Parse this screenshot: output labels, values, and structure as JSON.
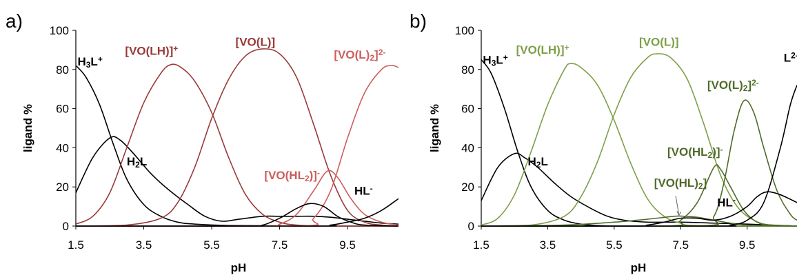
{
  "chart_data": [
    {
      "type": "line",
      "panel_letter": "a)",
      "xlabel": "pH",
      "ylabel": "ligand %",
      "xlim": [
        1.5,
        11.0
      ],
      "ylim": [
        0,
        100
      ],
      "x_ticks": [
        "1.5",
        "3.5",
        "5.5",
        "7.5",
        "9.5"
      ],
      "y_ticks": [
        "0",
        "20",
        "40",
        "60",
        "80",
        "100"
      ],
      "grid": false,
      "series": [
        {
          "name": "H3L+",
          "color": "#000000",
          "points": [
            [
              1.5,
              82
            ],
            [
              1.8,
              76
            ],
            [
              2.2,
              62
            ],
            [
              2.6,
              42
            ],
            [
              3.0,
              24
            ],
            [
              3.5,
              11
            ],
            [
              4.0,
              5
            ],
            [
              4.5,
              2
            ],
            [
              5.0,
              1
            ],
            [
              6.0,
              0.3
            ],
            [
              8.0,
              0
            ],
            [
              11.0,
              0
            ]
          ]
        },
        {
          "name": "H2L",
          "color": "#000000",
          "points": [
            [
              1.5,
              17
            ],
            [
              2.0,
              35
            ],
            [
              2.5,
              45
            ],
            [
              2.8,
              44
            ],
            [
              3.2,
              37
            ],
            [
              3.7,
              27
            ],
            [
              4.2,
              19
            ],
            [
              4.8,
              11
            ],
            [
              5.3,
              5
            ],
            [
              5.8,
              2.5
            ],
            [
              6.3,
              3.5
            ],
            [
              7.0,
              5
            ],
            [
              7.5,
              5
            ],
            [
              8.0,
              5
            ],
            [
              8.5,
              5
            ],
            [
              9.0,
              4.5
            ],
            [
              9.5,
              3.5
            ],
            [
              10.0,
              2.5
            ],
            [
              10.5,
              1.5
            ],
            [
              11.0,
              1
            ]
          ]
        },
        {
          "name": "[VO(LH)]+",
          "color": "#9b3a3a",
          "points": [
            [
              1.5,
              1
            ],
            [
              2.0,
              5
            ],
            [
              2.5,
              17
            ],
            [
              3.0,
              40
            ],
            [
              3.5,
              63
            ],
            [
              4.0,
              78
            ],
            [
              4.3,
              82.5
            ],
            [
              4.6,
              81
            ],
            [
              5.0,
              74
            ],
            [
              5.5,
              58
            ],
            [
              6.0,
              35
            ],
            [
              6.5,
              16
            ],
            [
              7.0,
              6
            ],
            [
              7.5,
              2
            ],
            [
              8.0,
              0.5
            ],
            [
              9.0,
              0
            ],
            [
              11.0,
              0
            ]
          ]
        },
        {
          "name": "[VO(L)]",
          "color": "#9b3a3a",
          "points": [
            [
              1.5,
              0
            ],
            [
              3.0,
              0.5
            ],
            [
              4.0,
              4
            ],
            [
              4.5,
              12
            ],
            [
              5.0,
              30
            ],
            [
              5.5,
              55
            ],
            [
              6.0,
              75
            ],
            [
              6.5,
              87
            ],
            [
              7.0,
              90.5
            ],
            [
              7.5,
              88
            ],
            [
              8.0,
              76
            ],
            [
              8.5,
              52
            ],
            [
              9.0,
              26
            ],
            [
              9.5,
              8
            ],
            [
              10.0,
              2
            ],
            [
              10.5,
              0.5
            ],
            [
              11.0,
              0
            ]
          ]
        },
        {
          "name": "[VO(HL2)]-",
          "color": "#cf5c5c",
          "points": [
            [
              1.5,
              0
            ],
            [
              7.0,
              0
            ],
            [
              7.5,
              1
            ],
            [
              8.0,
              6
            ],
            [
              8.5,
              18
            ],
            [
              8.9,
              28
            ],
            [
              9.2,
              25
            ],
            [
              9.6,
              14
            ],
            [
              10.0,
              6
            ],
            [
              10.5,
              2
            ],
            [
              11.0,
              0.5
            ]
          ]
        },
        {
          "name": "[VO(L)2]2-",
          "color": "#cf5c5c",
          "points": [
            [
              1.5,
              0
            ],
            [
              8.0,
              0
            ],
            [
              8.5,
              4
            ],
            [
              9.0,
              18
            ],
            [
              9.5,
              45
            ],
            [
              10.0,
              68
            ],
            [
              10.5,
              80
            ],
            [
              10.8,
              82
            ],
            [
              11.0,
              81
            ]
          ]
        },
        {
          "name": "HL-",
          "color": "#000000",
          "points": [
            [
              1.5,
              0
            ],
            [
              6.5,
              0
            ],
            [
              7.0,
              0.5
            ],
            [
              7.5,
              4
            ],
            [
              8.0,
              9
            ],
            [
              8.4,
              11.5
            ],
            [
              8.8,
              10
            ],
            [
              9.2,
              5
            ],
            [
              9.6,
              2
            ],
            [
              10.0,
              0.5
            ],
            [
              11.0,
              0
            ]
          ]
        },
        {
          "name": "L2-",
          "color": "#000000",
          "points": [
            [
              1.5,
              0
            ],
            [
              8.5,
              0
            ],
            [
              9.0,
              0.5
            ],
            [
              9.5,
              2
            ],
            [
              10.0,
              4
            ],
            [
              10.5,
              8
            ],
            [
              11.0,
              14
            ]
          ]
        }
      ],
      "annotations": [
        {
          "text": "H₃L⁺",
          "color": "#000000",
          "x": 1.55,
          "y": 82
        },
        {
          "text": "H₂L",
          "color": "#000000",
          "x": 3.0,
          "y": 31
        },
        {
          "text": "[VO(LH)]⁺",
          "color": "#9b3a3a",
          "x": 2.95,
          "y": 87.5
        },
        {
          "text": "[VO(L)]",
          "color": "#9b3a3a",
          "x": 6.2,
          "y": 92
        },
        {
          "text": "[VO(L)₂]²⁻",
          "color": "#cf5c5c",
          "x": 9.1,
          "y": 85.5
        },
        {
          "text": "[VO(HL₂)]⁻",
          "color": "#cf5c5c",
          "x": 7.05,
          "y": 24
        },
        {
          "text": "HL⁻",
          "color": "#000000",
          "x": 9.7,
          "y": 16
        }
      ]
    },
    {
      "type": "line",
      "panel_letter": "b)",
      "xlabel": "pH",
      "ylabel": "ligand %",
      "xlim": [
        1.5,
        11.0
      ],
      "ylim": [
        0,
        100
      ],
      "x_ticks": [
        "1.5",
        "3.5",
        "5.5",
        "7.5",
        "9.5"
      ],
      "y_ticks": [
        "0",
        "20",
        "40",
        "60",
        "80",
        "100"
      ],
      "grid": false,
      "series": [
        {
          "name": "H3L+",
          "color": "#000000",
          "points": [
            [
              1.5,
              85
            ],
            [
              1.8,
              78
            ],
            [
              2.2,
              60
            ],
            [
              2.6,
              38
            ],
            [
              3.0,
              20
            ],
            [
              3.5,
              8
            ],
            [
              4.0,
              3
            ],
            [
              4.5,
              1
            ],
            [
              5.0,
              0.3
            ],
            [
              6.0,
              0
            ],
            [
              11.0,
              0
            ]
          ]
        },
        {
          "name": "H2L",
          "color": "#000000",
          "points": [
            [
              1.5,
              13
            ],
            [
              2.0,
              30
            ],
            [
              2.5,
              37
            ],
            [
              2.8,
              35
            ],
            [
              3.2,
              30
            ],
            [
              3.7,
              22
            ],
            [
              4.2,
              15
            ],
            [
              4.8,
              9
            ],
            [
              5.3,
              5
            ],
            [
              5.8,
              3
            ],
            [
              6.5,
              2
            ],
            [
              7.5,
              2
            ],
            [
              8.5,
              1.5
            ],
            [
              9.5,
              1
            ],
            [
              11.0,
              0
            ]
          ]
        },
        {
          "name": "[VO(LH)]+",
          "color": "#7e9f48",
          "points": [
            [
              1.5,
              0.5
            ],
            [
              2.0,
              4
            ],
            [
              2.5,
              16
            ],
            [
              3.0,
              38
            ],
            [
              3.5,
              62
            ],
            [
              4.0,
              80
            ],
            [
              4.2,
              83
            ],
            [
              4.5,
              81
            ],
            [
              5.0,
              72
            ],
            [
              5.5,
              54
            ],
            [
              6.0,
              32
            ],
            [
              6.5,
              14
            ],
            [
              7.0,
              5
            ],
            [
              7.5,
              1.5
            ],
            [
              8.0,
              0.3
            ],
            [
              11.0,
              0
            ]
          ]
        },
        {
          "name": "[VO(L)]",
          "color": "#7e9f48",
          "points": [
            [
              1.5,
              0
            ],
            [
              3.0,
              0.5
            ],
            [
              4.0,
              5
            ],
            [
              4.5,
              15
            ],
            [
              5.0,
              33
            ],
            [
              5.5,
              57
            ],
            [
              6.0,
              76
            ],
            [
              6.5,
              86
            ],
            [
              6.8,
              88
            ],
            [
              7.2,
              86
            ],
            [
              7.7,
              75
            ],
            [
              8.2,
              52
            ],
            [
              8.7,
              26
            ],
            [
              9.2,
              10
            ],
            [
              9.7,
              3
            ],
            [
              10.2,
              0.5
            ],
            [
              11.0,
              0
            ]
          ]
        },
        {
          "name": "[VO(HL2)]-",
          "color": "#4f6b2a",
          "points": [
            [
              1.5,
              0
            ],
            [
              7.0,
              0
            ],
            [
              7.5,
              3
            ],
            [
              8.0,
              12
            ],
            [
              8.5,
              30
            ],
            [
              8.7,
              29
            ],
            [
              9.0,
              20
            ],
            [
              9.4,
              8
            ],
            [
              9.8,
              2
            ],
            [
              10.2,
              0.5
            ],
            [
              11.0,
              0
            ]
          ]
        },
        {
          "name": "[VO(HL)2]",
          "color": "#4f6b2a",
          "points": [
            [
              1.5,
              0
            ],
            [
              4.0,
              0.5
            ],
            [
              5.5,
              2
            ],
            [
              6.5,
              3.5
            ],
            [
              7.3,
              5
            ],
            [
              7.6,
              5
            ],
            [
              8.0,
              4.5
            ],
            [
              8.5,
              3
            ],
            [
              9.0,
              1.5
            ],
            [
              9.5,
              0.5
            ],
            [
              11.0,
              0
            ]
          ]
        },
        {
          "name": "[VO(L)2]2-",
          "color": "#4f6b2a",
          "points": [
            [
              1.5,
              0
            ],
            [
              8.0,
              0
            ],
            [
              8.5,
              5
            ],
            [
              8.8,
              22
            ],
            [
              9.1,
              48
            ],
            [
              9.4,
              64
            ],
            [
              9.7,
              58
            ],
            [
              10.0,
              40
            ],
            [
              10.4,
              18
            ],
            [
              10.8,
              6
            ],
            [
              11.0,
              3
            ]
          ]
        },
        {
          "name": "HL-",
          "color": "#000000",
          "points": [
            [
              1.5,
              0
            ],
            [
              6.0,
              0
            ],
            [
              6.5,
              0.5
            ],
            [
              7.0,
              2
            ],
            [
              7.5,
              4
            ],
            [
              8.0,
              4
            ],
            [
              8.5,
              3
            ],
            [
              9.0,
              5
            ],
            [
              9.5,
              10
            ],
            [
              9.8,
              15
            ],
            [
              10.1,
              17.5
            ],
            [
              10.5,
              16
            ],
            [
              11.0,
              12
            ]
          ]
        },
        {
          "name": "L2-",
          "color": "#000000",
          "points": [
            [
              1.5,
              0
            ],
            [
              8.5,
              0
            ],
            [
              9.0,
              0.5
            ],
            [
              9.5,
              3
            ],
            [
              10.0,
              12
            ],
            [
              10.5,
              40
            ],
            [
              10.8,
              62
            ],
            [
              11.0,
              72
            ]
          ]
        }
      ],
      "annotations": [
        {
          "text": "H₃L⁺",
          "color": "#000000",
          "x": 1.55,
          "y": 83
        },
        {
          "text": "H₂L",
          "color": "#000000",
          "x": 2.9,
          "y": 31
        },
        {
          "text": "[VO(LH)]⁺",
          "color": "#7e9f48",
          "x": 2.55,
          "y": 88
        },
        {
          "text": "[VO(L)]",
          "color": "#7e9f48",
          "x": 6.25,
          "y": 92
        },
        {
          "text": "L²⁻",
          "color": "#000000",
          "x": 10.6,
          "y": 84
        },
        {
          "text": "[VO(L)₂]²⁻",
          "color": "#4f6b2a",
          "x": 8.3,
          "y": 70
        },
        {
          "text": "[VO(HL₂)]⁻",
          "color": "#4f6b2a",
          "x": 7.1,
          "y": 36
        },
        {
          "text": "[VO(HL)₂]",
          "color": "#4f6b2a",
          "x": 6.7,
          "y": 20
        },
        {
          "text": "HL⁻",
          "color": "#000000",
          "x": 8.6,
          "y": 10
        }
      ]
    }
  ]
}
